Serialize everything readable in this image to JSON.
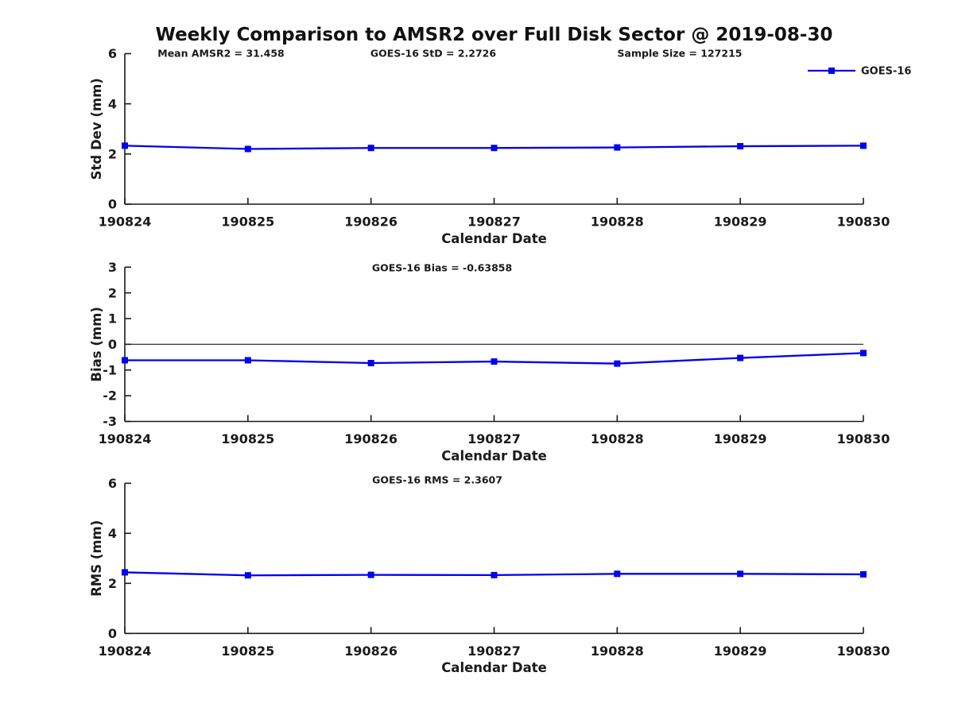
{
  "title": "Weekly Comparison to AMSR2 over Full Disk Sector @ 2019-08-30",
  "colors": {
    "line": "#0000EE",
    "axis": "#1a1a1a",
    "text": "#1a1a1a",
    "zero_line": "#333333"
  },
  "legend": {
    "label": "GOES-16",
    "position": "top-right"
  },
  "chart_data": [
    {
      "type": "line",
      "name": "std-dev",
      "ylabel": "Std Dev (mm)",
      "xlabel": "Calendar Date",
      "ylim": [
        0,
        6
      ],
      "yticks": [
        0,
        2,
        4,
        6
      ],
      "grid": false,
      "annotations": [
        "Mean AMSR2 = 31.458",
        "GOES-16 StD = 2.2726",
        "Sample Size = 127215"
      ],
      "categories": [
        "190824",
        "190825",
        "190826",
        "190827",
        "190828",
        "190829",
        "190830"
      ],
      "series": [
        {
          "name": "GOES-16",
          "values": [
            2.33,
            2.2,
            2.24,
            2.24,
            2.26,
            2.31,
            2.33
          ]
        }
      ]
    },
    {
      "type": "line",
      "name": "bias",
      "ylabel": "Bias (mm)",
      "xlabel": "Calendar Date",
      "ylim": [
        -3,
        3
      ],
      "yticks": [
        -3,
        -2,
        -1,
        0,
        1,
        2,
        3
      ],
      "grid": false,
      "hline": 0,
      "annotations": [
        "GOES-16 Bias  = -0.63858"
      ],
      "categories": [
        "190824",
        "190825",
        "190826",
        "190827",
        "190828",
        "190829",
        "190830"
      ],
      "series": [
        {
          "name": "GOES-16",
          "values": [
            -0.62,
            -0.62,
            -0.73,
            -0.67,
            -0.75,
            -0.53,
            -0.34
          ]
        }
      ]
    },
    {
      "type": "line",
      "name": "rms",
      "ylabel": "RMS (mm)",
      "xlabel": "Calendar Date",
      "ylim": [
        0,
        6
      ],
      "yticks": [
        0,
        2,
        4,
        6
      ],
      "grid": false,
      "annotations": [
        "GOES-16 RMS = 2.3607"
      ],
      "categories": [
        "190824",
        "190825",
        "190826",
        "190827",
        "190828",
        "190829",
        "190830"
      ],
      "series": [
        {
          "name": "GOES-16",
          "values": [
            2.44,
            2.32,
            2.34,
            2.33,
            2.38,
            2.38,
            2.36
          ]
        }
      ]
    }
  ]
}
